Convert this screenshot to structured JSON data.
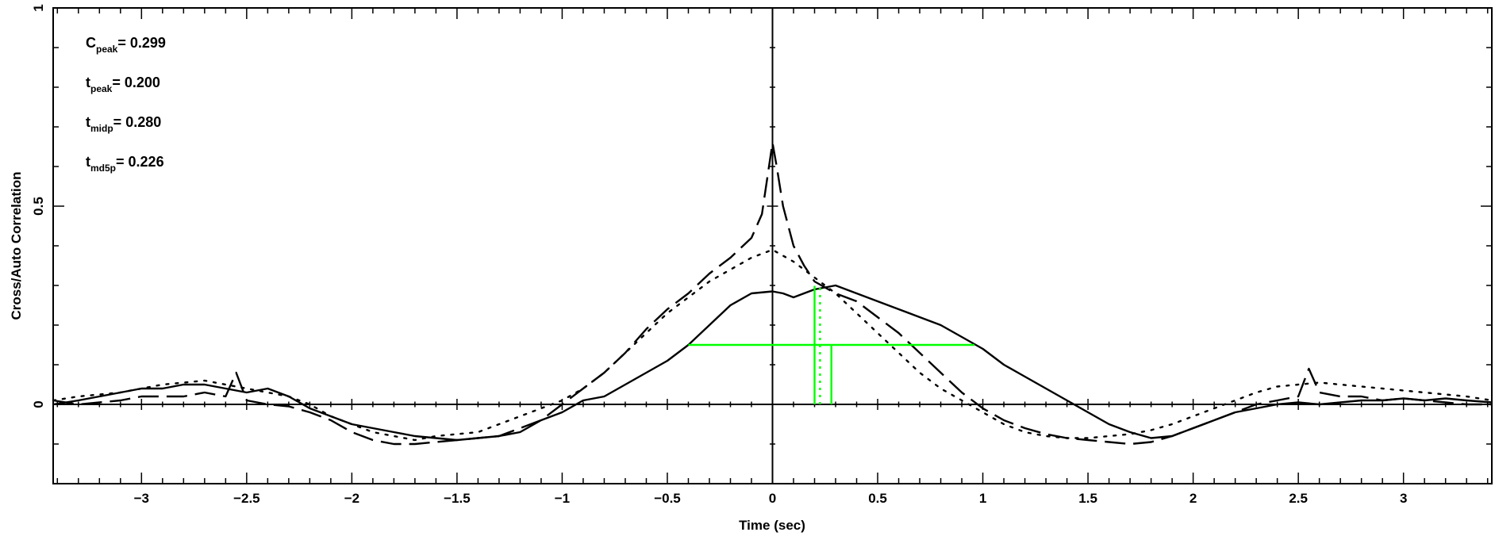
{
  "chart_data": {
    "type": "line",
    "title": "",
    "xlabel": "Time (sec)",
    "ylabel": "Cross/Auto Correlation",
    "xlim": [
      -3.42,
      3.42
    ],
    "ylim": [
      -0.2,
      1.0
    ],
    "xticks": [
      -3,
      -2.5,
      -2,
      -1.5,
      -1,
      -0.5,
      0,
      0.5,
      1,
      1.5,
      2,
      2.5,
      3
    ],
    "xtick_labels": [
      "−3",
      "−2.5",
      "−2",
      "−1.5",
      "−1",
      "−0.5",
      "0",
      "0.5",
      "1",
      "1.5",
      "2",
      "2.5",
      "3"
    ],
    "yticks": [
      0,
      0.5,
      1
    ],
    "ytick_labels": [
      "0",
      "0.5",
      "1"
    ],
    "grid": false,
    "annotations": [
      {
        "main": "C",
        "sub": "peak",
        "value": "0.299"
      },
      {
        "main": "t",
        "sub": "peak",
        "value": "0.200"
      },
      {
        "main": "t",
        "sub": "midp",
        "value": "0.280"
      },
      {
        "main": "t",
        "sub": "md5p",
        "value": "0.226"
      }
    ],
    "series": [
      {
        "style": "solid",
        "color": "#000000",
        "x": [
          -3.42,
          -3.3,
          -3.2,
          -3.1,
          -3.0,
          -2.9,
          -2.8,
          -2.7,
          -2.6,
          -2.5,
          -2.4,
          -2.3,
          -2.2,
          -2.1,
          -2.0,
          -1.9,
          -1.8,
          -1.7,
          -1.6,
          -1.5,
          -1.4,
          -1.3,
          -1.2,
          -1.1,
          -1.0,
          -0.9,
          -0.8,
          -0.7,
          -0.6,
          -0.5,
          -0.4,
          -0.3,
          -0.2,
          -0.1,
          0.0,
          0.05,
          0.1,
          0.2,
          0.3,
          0.4,
          0.5,
          0.6,
          0.7,
          0.8,
          0.9,
          1.0,
          1.1,
          1.2,
          1.3,
          1.4,
          1.5,
          1.6,
          1.7,
          1.8,
          1.9,
          2.0,
          2.1,
          2.2,
          2.3,
          2.4,
          2.5,
          2.6,
          2.7,
          2.8,
          2.9,
          3.0,
          3.1,
          3.2,
          3.3,
          3.42
        ],
        "y": [
          0.0,
          0.01,
          0.02,
          0.03,
          0.04,
          0.04,
          0.05,
          0.05,
          0.04,
          0.03,
          0.04,
          0.02,
          -0.01,
          -0.03,
          -0.05,
          -0.06,
          -0.07,
          -0.08,
          -0.085,
          -0.09,
          -0.085,
          -0.08,
          -0.07,
          -0.04,
          -0.02,
          0.01,
          0.02,
          0.05,
          0.08,
          0.11,
          0.15,
          0.2,
          0.25,
          0.28,
          0.285,
          0.28,
          0.27,
          0.29,
          0.3,
          0.28,
          0.26,
          0.24,
          0.22,
          0.2,
          0.17,
          0.14,
          0.1,
          0.07,
          0.04,
          0.01,
          -0.02,
          -0.05,
          -0.07,
          -0.085,
          -0.08,
          -0.06,
          -0.04,
          -0.02,
          -0.01,
          0.0,
          0.005,
          0.0,
          0.005,
          0.01,
          0.01,
          0.015,
          0.01,
          0.015,
          0.01,
          0.005
        ]
      },
      {
        "style": "dashed",
        "color": "#000000",
        "x": [
          -3.42,
          -3.3,
          -3.2,
          -3.1,
          -3.0,
          -2.9,
          -2.8,
          -2.7,
          -2.6,
          -2.55,
          -2.5,
          -2.4,
          -2.3,
          -2.2,
          -2.1,
          -2.0,
          -1.9,
          -1.8,
          -1.7,
          -1.6,
          -1.5,
          -1.4,
          -1.3,
          -1.2,
          -1.1,
          -1.0,
          -0.9,
          -0.8,
          -0.7,
          -0.6,
          -0.5,
          -0.4,
          -0.3,
          -0.2,
          -0.1,
          -0.05,
          0.0,
          0.02,
          0.05,
          0.1,
          0.15,
          0.2,
          0.3,
          0.4,
          0.5,
          0.6,
          0.7,
          0.8,
          0.9,
          1.0,
          1.1,
          1.2,
          1.3,
          1.4,
          1.5,
          1.6,
          1.7,
          1.8,
          1.9,
          2.0,
          2.1,
          2.2,
          2.3,
          2.4,
          2.5,
          2.55,
          2.6,
          2.7,
          2.8,
          2.9,
          3.0,
          3.1,
          3.2,
          3.3,
          3.42
        ],
        "y": [
          0.01,
          0.0,
          0.005,
          0.01,
          0.02,
          0.02,
          0.02,
          0.03,
          0.02,
          0.08,
          0.01,
          0.0,
          -0.005,
          -0.02,
          -0.04,
          -0.07,
          -0.09,
          -0.1,
          -0.1,
          -0.095,
          -0.09,
          -0.085,
          -0.08,
          -0.06,
          -0.04,
          0.0,
          0.04,
          0.08,
          0.13,
          0.19,
          0.24,
          0.28,
          0.33,
          0.37,
          0.42,
          0.48,
          0.66,
          0.6,
          0.5,
          0.4,
          0.35,
          0.31,
          0.28,
          0.26,
          0.22,
          0.18,
          0.13,
          0.08,
          0.03,
          -0.01,
          -0.04,
          -0.06,
          -0.075,
          -0.085,
          -0.09,
          -0.095,
          -0.1,
          -0.095,
          -0.08,
          -0.06,
          -0.04,
          -0.02,
          0.0,
          0.01,
          0.02,
          0.09,
          0.03,
          0.02,
          0.02,
          0.01,
          0.015,
          0.01,
          0.005,
          0.0,
          0.0
        ]
      },
      {
        "style": "dotted",
        "color": "#000000",
        "x": [
          -3.42,
          -3.3,
          -3.2,
          -3.1,
          -3.0,
          -2.9,
          -2.8,
          -2.7,
          -2.6,
          -2.5,
          -2.4,
          -2.3,
          -2.2,
          -2.1,
          -2.0,
          -1.9,
          -1.8,
          -1.7,
          -1.6,
          -1.5,
          -1.4,
          -1.3,
          -1.2,
          -1.1,
          -1.0,
          -0.9,
          -0.8,
          -0.7,
          -0.6,
          -0.5,
          -0.4,
          -0.3,
          -0.2,
          -0.1,
          0.0,
          0.1,
          0.2,
          0.3,
          0.4,
          0.5,
          0.6,
          0.7,
          0.8,
          0.9,
          1.0,
          1.1,
          1.2,
          1.3,
          1.4,
          1.5,
          1.6,
          1.7,
          1.8,
          1.9,
          2.0,
          2.1,
          2.2,
          2.3,
          2.4,
          2.5,
          2.6,
          2.7,
          2.8,
          2.9,
          3.0,
          3.1,
          3.2,
          3.3,
          3.42
        ],
        "y": [
          0.01,
          0.02,
          0.025,
          0.03,
          0.04,
          0.05,
          0.055,
          0.06,
          0.05,
          0.04,
          0.03,
          0.02,
          0.0,
          -0.03,
          -0.05,
          -0.07,
          -0.08,
          -0.09,
          -0.08,
          -0.075,
          -0.07,
          -0.05,
          -0.03,
          -0.01,
          0.01,
          0.04,
          0.08,
          0.13,
          0.18,
          0.23,
          0.27,
          0.31,
          0.34,
          0.37,
          0.39,
          0.36,
          0.32,
          0.28,
          0.23,
          0.18,
          0.13,
          0.08,
          0.04,
          0.01,
          -0.02,
          -0.05,
          -0.07,
          -0.08,
          -0.085,
          -0.085,
          -0.08,
          -0.075,
          -0.065,
          -0.05,
          -0.03,
          -0.01,
          0.01,
          0.03,
          0.045,
          0.05,
          0.055,
          0.05,
          0.045,
          0.04,
          0.035,
          0.03,
          0.025,
          0.02,
          0.01
        ]
      }
    ],
    "markers": {
      "color": "#00ff00",
      "horizontal": {
        "y": 0.15,
        "x0": -0.4,
        "x1": 0.96
      },
      "vertical_solid": [
        {
          "x": 0.2,
          "y0": 0.0,
          "y1": 0.299
        },
        {
          "x": 0.28,
          "y0": 0.0,
          "y1": 0.15
        }
      ],
      "vertical_dotted": [
        {
          "x": 0.226,
          "y0": 0.0,
          "y1": 0.299
        }
      ]
    }
  }
}
